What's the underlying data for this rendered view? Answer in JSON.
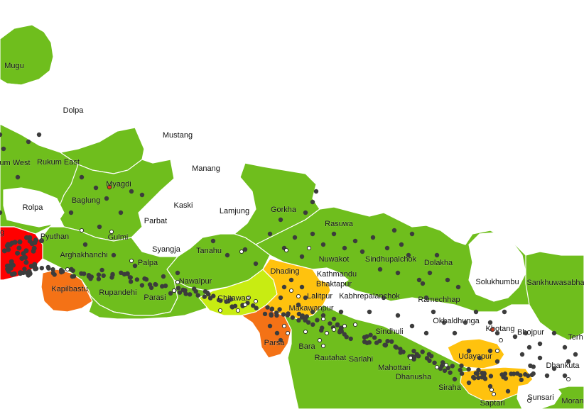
{
  "colors": {
    "none": "#ffffff",
    "low": "#6fbe1d",
    "light": "#c8ec12",
    "medium": "#ffc20e",
    "high": "#f47216",
    "very_high": "#ff0000",
    "point_dark": "#3c3c3c",
    "point_white": "#ffffff",
    "point_red": "#e23b1b"
  },
  "districts": [
    {
      "name": "Mugu",
      "class": "low"
    },
    {
      "name": "Dolpa",
      "class": "none"
    },
    {
      "name": "Mustang",
      "class": "none"
    },
    {
      "name": "Manang",
      "class": "none"
    },
    {
      "name": "Rukum West",
      "class": "low"
    },
    {
      "name": "Rukum East",
      "class": "low"
    },
    {
      "name": "Myagdi",
      "class": "low"
    },
    {
      "name": "Baglung",
      "class": "low"
    },
    {
      "name": "Rolpa",
      "class": "none"
    },
    {
      "name": "Kaski",
      "class": "none"
    },
    {
      "name": "Lamjung",
      "class": "none"
    },
    {
      "name": "Gorkha",
      "class": "low"
    },
    {
      "name": "Parbat",
      "class": "none"
    },
    {
      "name": "Rasuwa",
      "class": "low"
    },
    {
      "name": "Pyuthan",
      "class": "low"
    },
    {
      "name": "Gulmi",
      "class": "low"
    },
    {
      "name": "Syangja",
      "class": "none"
    },
    {
      "name": "Tanahu",
      "class": "low"
    },
    {
      "name": "Nuwakot",
      "class": "low"
    },
    {
      "name": "Sindhupalchok",
      "class": "low"
    },
    {
      "name": "Arghakhanchi",
      "class": "low"
    },
    {
      "name": "Palpa",
      "class": "low"
    },
    {
      "name": "Dhading",
      "class": "low"
    },
    {
      "name": "Kathmandu",
      "class": "none"
    },
    {
      "name": "Dolakha",
      "class": "low"
    },
    {
      "name": "Kapilbastu",
      "class": "high"
    },
    {
      "name": "Rupandehi",
      "class": "low"
    },
    {
      "name": "Nawalpur",
      "class": "low"
    },
    {
      "name": "Bhaktapur",
      "class": "none"
    },
    {
      "name": "Solukhumbu",
      "class": "none"
    },
    {
      "name": "Sankhuwasabha",
      "class": "low"
    },
    {
      "name": "Parasi",
      "class": "low"
    },
    {
      "name": "Chitawan",
      "class": "light"
    },
    {
      "name": "Lalitpur",
      "class": "medium"
    },
    {
      "name": "Kabhrepalanchok",
      "class": "low"
    },
    {
      "name": "Ramechhap",
      "class": "low"
    },
    {
      "name": "Makawanpur",
      "class": "medium"
    },
    {
      "name": "Okhaldhunga",
      "class": "low"
    },
    {
      "name": "Khotang",
      "class": "low"
    },
    {
      "name": "Bhojpur",
      "class": "low"
    },
    {
      "name": "Terhathum",
      "label": "Terh",
      "class": "low"
    },
    {
      "name": "Sindhuli",
      "class": "low"
    },
    {
      "name": "Parsa",
      "class": "high"
    },
    {
      "name": "Bara",
      "class": "low"
    },
    {
      "name": "Rautahat",
      "class": "low"
    },
    {
      "name": "Sarlahi",
      "class": "low"
    },
    {
      "name": "Udayapur",
      "class": "medium"
    },
    {
      "name": "Dhankuta",
      "class": "low"
    },
    {
      "name": "Mahottari",
      "class": "low"
    },
    {
      "name": "Dhanusha",
      "class": "low"
    },
    {
      "name": "Siraha",
      "class": "low"
    },
    {
      "name": "Saptari",
      "class": "medium"
    },
    {
      "name": "Sunsari",
      "class": "none"
    },
    {
      "name": "Morang",
      "label": "Moran",
      "class": "low"
    },
    {
      "name": "Dang",
      "label": "g",
      "class": "very_high"
    },
    {
      "name": "Rukum West (cut)",
      "label": "um West",
      "class": "low"
    }
  ]
}
